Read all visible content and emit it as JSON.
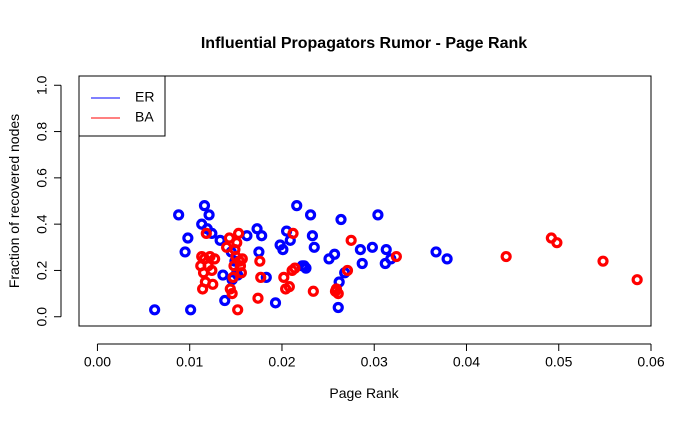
{
  "chart_data": {
    "type": "scatter",
    "title": "Influential Propagators Rumor - Page Rank",
    "xlabel": "Page Rank",
    "ylabel": "Fraction of recovered nodes",
    "xlim": [
      -0.002,
      0.06
    ],
    "ylim": [
      -0.04,
      1.04
    ],
    "x_ticks": [
      "0.00",
      "0.01",
      "0.02",
      "0.03",
      "0.04",
      "0.05",
      "0.06"
    ],
    "y_ticks": [
      "0.0",
      "0.2",
      "0.4",
      "0.6",
      "0.8",
      "1.0"
    ],
    "legend_position": "top-left",
    "grid": false,
    "series": [
      {
        "name": "ER",
        "color": "#0000ff",
        "points": [
          [
            0.0062,
            0.03
          ],
          [
            0.0088,
            0.44
          ],
          [
            0.0095,
            0.28
          ],
          [
            0.0098,
            0.34
          ],
          [
            0.0101,
            0.03
          ],
          [
            0.0113,
            0.4
          ],
          [
            0.0116,
            0.48
          ],
          [
            0.0119,
            0.38
          ],
          [
            0.0121,
            0.44
          ],
          [
            0.0124,
            0.36
          ],
          [
            0.0133,
            0.33
          ],
          [
            0.0136,
            0.18
          ],
          [
            0.0138,
            0.07
          ],
          [
            0.0145,
            0.28
          ],
          [
            0.0146,
            0.16
          ],
          [
            0.0149,
            0.24
          ],
          [
            0.0151,
            0.19
          ],
          [
            0.0152,
            0.18
          ],
          [
            0.0162,
            0.35
          ],
          [
            0.0173,
            0.38
          ],
          [
            0.0178,
            0.35
          ],
          [
            0.0175,
            0.28
          ],
          [
            0.0183,
            0.17
          ],
          [
            0.0193,
            0.06
          ],
          [
            0.0198,
            0.31
          ],
          [
            0.0201,
            0.29
          ],
          [
            0.0205,
            0.37
          ],
          [
            0.0209,
            0.33
          ],
          [
            0.0216,
            0.48
          ],
          [
            0.0222,
            0.22
          ],
          [
            0.0224,
            0.22
          ],
          [
            0.0226,
            0.21
          ],
          [
            0.0231,
            0.44
          ],
          [
            0.0233,
            0.35
          ],
          [
            0.0235,
            0.3
          ],
          [
            0.0251,
            0.25
          ],
          [
            0.0257,
            0.27
          ],
          [
            0.0261,
            0.04
          ],
          [
            0.0262,
            0.15
          ],
          [
            0.0264,
            0.42
          ],
          [
            0.0268,
            0.19
          ],
          [
            0.0285,
            0.29
          ],
          [
            0.0287,
            0.23
          ],
          [
            0.0298,
            0.3
          ],
          [
            0.0304,
            0.44
          ],
          [
            0.0312,
            0.23
          ],
          [
            0.0313,
            0.29
          ],
          [
            0.0318,
            0.25
          ],
          [
            0.0367,
            0.28
          ],
          [
            0.0379,
            0.25
          ]
        ]
      },
      {
        "name": "BA",
        "color": "#ff0000",
        "points": [
          [
            0.0112,
            0.22
          ],
          [
            0.0113,
            0.26
          ],
          [
            0.0114,
            0.12
          ],
          [
            0.0115,
            0.19
          ],
          [
            0.0116,
            0.25
          ],
          [
            0.0117,
            0.15
          ],
          [
            0.0118,
            0.36
          ],
          [
            0.012,
            0.22
          ],
          [
            0.0122,
            0.26
          ],
          [
            0.0124,
            0.2
          ],
          [
            0.0125,
            0.14
          ],
          [
            0.0127,
            0.25
          ],
          [
            0.014,
            0.3
          ],
          [
            0.0143,
            0.34
          ],
          [
            0.0144,
            0.12
          ],
          [
            0.0146,
            0.1
          ],
          [
            0.0147,
            0.17
          ],
          [
            0.0148,
            0.22
          ],
          [
            0.0149,
            0.29
          ],
          [
            0.015,
            0.26
          ],
          [
            0.0151,
            0.32
          ],
          [
            0.0152,
            0.03
          ],
          [
            0.0153,
            0.36
          ],
          [
            0.0154,
            0.24
          ],
          [
            0.0155,
            0.22
          ],
          [
            0.0156,
            0.19
          ],
          [
            0.0157,
            0.25
          ],
          [
            0.0174,
            0.08
          ],
          [
            0.0176,
            0.24
          ],
          [
            0.0177,
            0.17
          ],
          [
            0.0202,
            0.17
          ],
          [
            0.0204,
            0.12
          ],
          [
            0.0208,
            0.13
          ],
          [
            0.0211,
            0.2
          ],
          [
            0.0212,
            0.36
          ],
          [
            0.0214,
            0.21
          ],
          [
            0.0234,
            0.11
          ],
          [
            0.0258,
            0.11
          ],
          [
            0.0259,
            0.12
          ],
          [
            0.0261,
            0.1
          ],
          [
            0.0271,
            0.2
          ],
          [
            0.0275,
            0.33
          ],
          [
            0.0324,
            0.26
          ],
          [
            0.0443,
            0.26
          ],
          [
            0.0492,
            0.34
          ],
          [
            0.0498,
            0.32
          ],
          [
            0.0548,
            0.24
          ],
          [
            0.0585,
            0.16
          ]
        ]
      }
    ]
  }
}
